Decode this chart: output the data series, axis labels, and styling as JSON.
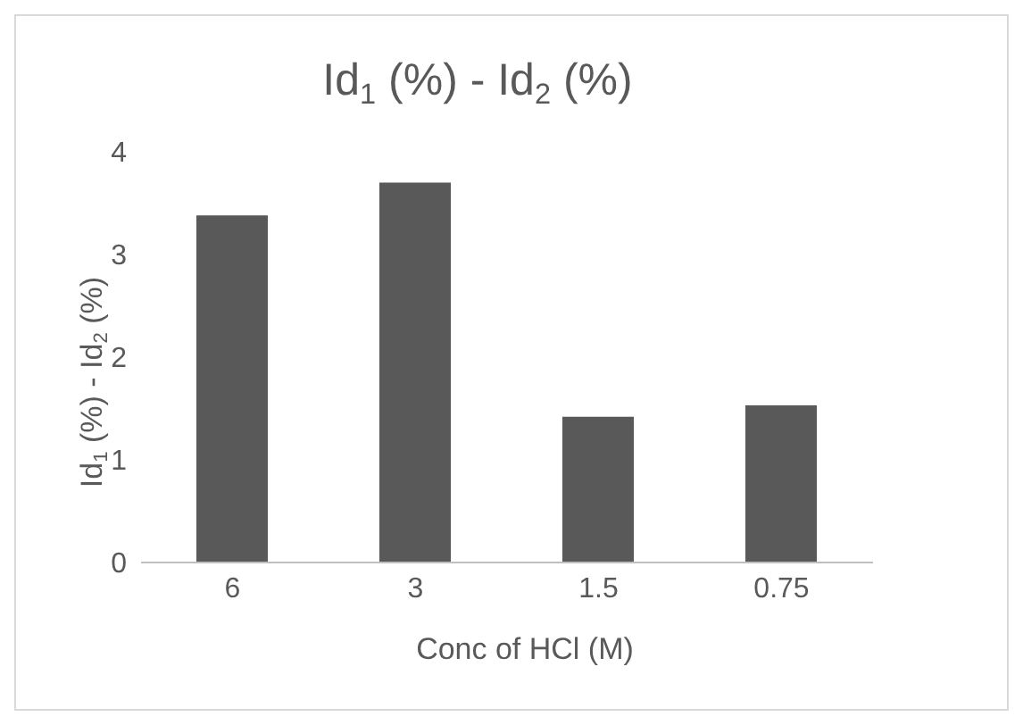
{
  "chart_data": {
    "type": "bar",
    "title": "Id$_{1}$ (%) - Id$_{2}$ (%)",
    "xlabel": "Conc of HCl (M)",
    "ylabel": "Id$_{1}$ (%) - Id$_{2}$ (%)",
    "categories": [
      "6",
      "3",
      "1.5",
      "0.75"
    ],
    "values": [
      3.38,
      3.7,
      1.42,
      1.53
    ],
    "color": "#595959",
    "ylim": [
      0,
      4
    ],
    "yticks": [
      0,
      1,
      2,
      3,
      4
    ],
    "grid": false,
    "legend": false
  }
}
